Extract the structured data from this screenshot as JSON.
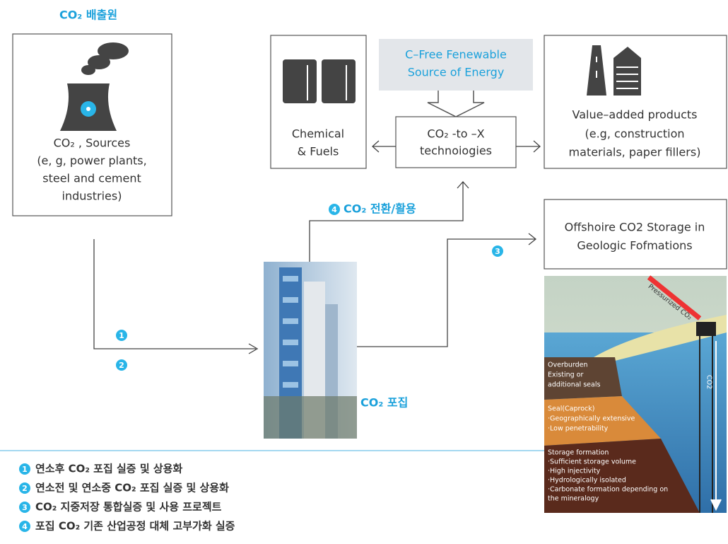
{
  "header": {
    "title": "CO₂ 배출원"
  },
  "source": {
    "lines": [
      "CO₂ , Sources",
      "(e, g, power plants,",
      "steel and cement",
      "industries)"
    ]
  },
  "energy": {
    "lines": [
      "C–Free Fenewable",
      "Source of Energy"
    ]
  },
  "chemical": {
    "lines": [
      "Chemical",
      "& Fuels"
    ]
  },
  "conversion": {
    "lines": [
      "CO₂ -to –X",
      "technoiogies"
    ]
  },
  "products": {
    "lines": [
      "Value–added products",
      "(e.g, construction",
      "materials, paper fillers)"
    ]
  },
  "storage": {
    "lines": [
      "Offshoire CO2 Storage in",
      "Geologic Fofmations"
    ]
  },
  "capture_label": "CO₂ 포집",
  "utilization_label": {
    "marker": "4",
    "text": "CO₂ 전환/활용"
  },
  "path_markers": [
    "1",
    "2",
    "3"
  ],
  "geology": {
    "injection": "Pressurized CO₂",
    "well": "CO2",
    "overburden": [
      "Overburden",
      "Existing or",
      "additional seals"
    ],
    "seal": [
      "Seal(Caprock)",
      "·Geographically extensive",
      "·Low penetrability"
    ],
    "formation": [
      "Storage formation",
      "·Sufficient storage volume",
      "·High injectivity",
      "·Hydrologically isolated",
      "·Carbonate formation depending on",
      "the mineralogy"
    ]
  },
  "legend": [
    {
      "marker": "1",
      "text": "연소후 CO₂ 포집 실증 및 상용화"
    },
    {
      "marker": "2",
      "text": "연소전 및 연소중 CO₂ 포집 실증 및 상용화"
    },
    {
      "marker": "3",
      "text": "CO₂ 지중저장 통합실증 및 사용 프로젝트"
    },
    {
      "marker": "4",
      "text": "포집 CO₂ 기존 산업공정 대체 고부가화 실증"
    }
  ]
}
